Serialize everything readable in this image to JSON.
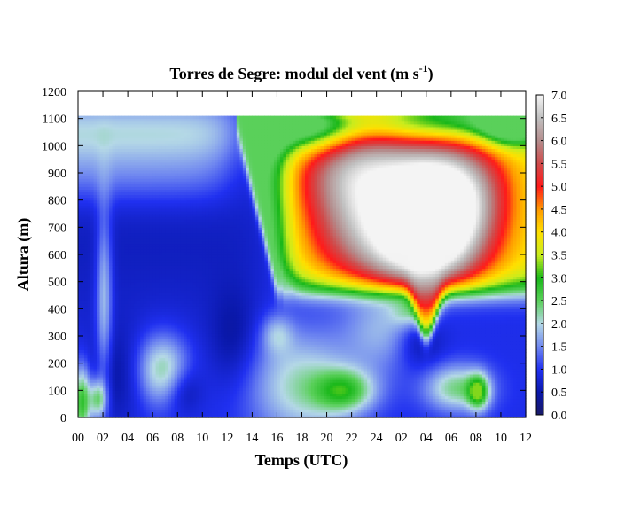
{
  "chart_data": {
    "type": "heatmap",
    "title": "Torres de Segre: modul del vent (m s",
    "title_superscript": "-1",
    "title_suffix": ")",
    "xlabel": "Temps (UTC)",
    "ylabel": "Altura (m)",
    "x_tick_labels": [
      "00",
      "02",
      "04",
      "06",
      "08",
      "10",
      "12",
      "14",
      "16",
      "18",
      "20",
      "22",
      "24",
      "02",
      "04",
      "06",
      "08",
      "10",
      "12"
    ],
    "x_range_hours": [
      0,
      36
    ],
    "y_ticks": [
      0,
      100,
      200,
      300,
      400,
      500,
      600,
      700,
      800,
      900,
      1000,
      1100,
      1200
    ],
    "y_range": [
      0,
      1200
    ],
    "data_top_altitude": 1110,
    "colorbar": {
      "min": 0.0,
      "max": 7.0,
      "tick_labels": [
        "0.0",
        "0.5",
        "1.0",
        "1.5",
        "2.0",
        "2.5",
        "3.0",
        "3.5",
        "4.0",
        "4.5",
        "5.0",
        "5.5",
        "6.0",
        "6.5",
        "7.0"
      ],
      "palette": [
        {
          "v": 0.0,
          "color": "#1a1a66"
        },
        {
          "v": 0.5,
          "color": "#0a18aa"
        },
        {
          "v": 1.0,
          "color": "#2030f0"
        },
        {
          "v": 1.5,
          "color": "#7088f0"
        },
        {
          "v": 2.0,
          "color": "#b4d8e6"
        },
        {
          "v": 2.5,
          "color": "#5ad05a"
        },
        {
          "v": 3.0,
          "color": "#1ab81a"
        },
        {
          "v": 3.5,
          "color": "#c8ec1e"
        },
        {
          "v": 4.0,
          "color": "#ffe000"
        },
        {
          "v": 4.5,
          "color": "#ff9a00"
        },
        {
          "v": 5.0,
          "color": "#ff1a1a"
        },
        {
          "v": 5.5,
          "color": "#d04a4a"
        },
        {
          "v": 6.0,
          "color": "#b48c8c"
        },
        {
          "v": 6.5,
          "color": "#c0c0c0"
        },
        {
          "v": 7.0,
          "color": "#f4f4f4"
        }
      ]
    }
  }
}
